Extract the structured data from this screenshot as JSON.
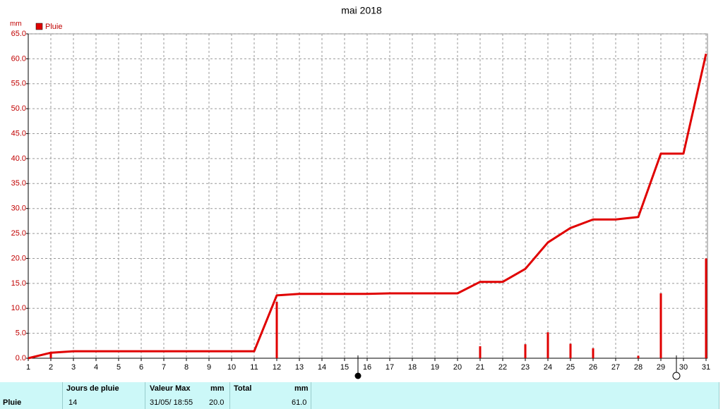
{
  "chart_data": {
    "type": "line",
    "title": "mai 2018",
    "y_unit": "mm",
    "x": [
      1,
      2,
      3,
      4,
      5,
      6,
      7,
      8,
      9,
      10,
      11,
      12,
      13,
      14,
      15,
      16,
      17,
      18,
      19,
      20,
      21,
      22,
      23,
      24,
      25,
      26,
      27,
      28,
      29,
      30,
      31
    ],
    "series": [
      {
        "name": "Pluie",
        "type": "line",
        "color": "#e00000",
        "values": [
          0.0,
          1.1,
          1.4,
          1.4,
          1.4,
          1.4,
          1.4,
          1.4,
          1.4,
          1.4,
          1.4,
          12.6,
          12.9,
          12.9,
          12.9,
          12.9,
          13.0,
          13.0,
          13.0,
          13.0,
          15.3,
          15.3,
          17.9,
          23.2,
          26.1,
          27.8,
          27.8,
          28.3,
          41.0,
          41.0,
          61.0
        ]
      },
      {
        "type": "bar",
        "color": "#e00000",
        "values": [
          null,
          1.1,
          null,
          null,
          null,
          null,
          null,
          null,
          null,
          null,
          null,
          11.3,
          null,
          null,
          null,
          null,
          null,
          null,
          null,
          null,
          2.4,
          null,
          2.8,
          5.2,
          2.9,
          2.0,
          null,
          0.5,
          13.0,
          null,
          20.0
        ]
      }
    ],
    "xlim": [
      1,
      31
    ],
    "xticks": [
      1,
      2,
      3,
      4,
      5,
      6,
      7,
      8,
      9,
      10,
      11,
      12,
      13,
      14,
      15,
      16,
      17,
      18,
      19,
      20,
      21,
      22,
      23,
      24,
      25,
      26,
      27,
      28,
      29,
      30,
      31
    ],
    "ylim": [
      0,
      65
    ],
    "yticks": [
      {
        "value": 0,
        "label": "0.0"
      },
      {
        "value": 5,
        "label": "5.0"
      },
      {
        "value": 10,
        "label": "10.0"
      },
      {
        "value": 15,
        "label": "15.0"
      },
      {
        "value": 20,
        "label": "20.0"
      },
      {
        "value": 25,
        "label": "25.0"
      },
      {
        "value": 30,
        "label": "30.0"
      },
      {
        "value": 35,
        "label": "35.0"
      },
      {
        "value": 40,
        "label": "40.0"
      },
      {
        "value": 45,
        "label": "45.0"
      },
      {
        "value": 50,
        "label": "50.0"
      },
      {
        "value": 55,
        "label": "55.0"
      },
      {
        "value": 60,
        "label": "60.0"
      },
      {
        "value": 65,
        "label": "65.0"
      }
    ],
    "grid": true,
    "legend": "top-left"
  },
  "table": {
    "header": [
      "Jours de pluie",
      "Valeur Max",
      "mm",
      "Total",
      "mm"
    ],
    "rows": [
      [
        "Pluie",
        "14",
        "31/05/ 18:55",
        "20.0",
        "61.0"
      ]
    ]
  }
}
